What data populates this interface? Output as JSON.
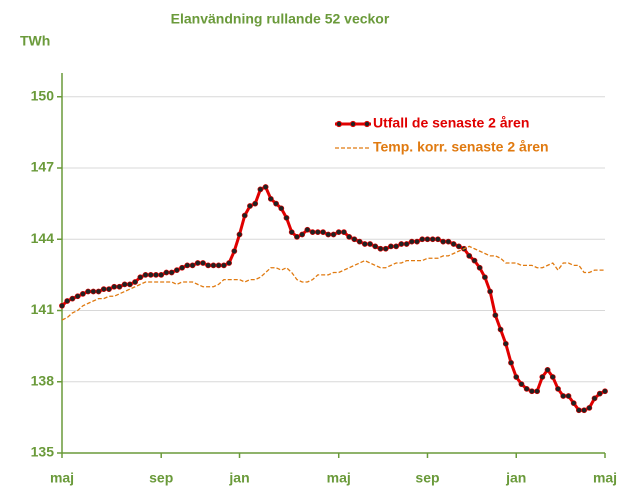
{
  "chart_data": {
    "type": "line",
    "title": "Elanvändning rullande 52 veckor",
    "y_label": "TWh",
    "categories": [
      "maj",
      null,
      null,
      null,
      null,
      null,
      null,
      null,
      null,
      null,
      null,
      null,
      null,
      null,
      null,
      null,
      null,
      null,
      null,
      "sep",
      null,
      null,
      null,
      null,
      null,
      null,
      null,
      null,
      null,
      null,
      null,
      null,
      null,
      null,
      "jan",
      null,
      null,
      null,
      null,
      null,
      null,
      null,
      null,
      null,
      null,
      null,
      null,
      null,
      null,
      null,
      null,
      null,
      null,
      "maj",
      null,
      null,
      null,
      null,
      null,
      null,
      null,
      null,
      null,
      null,
      null,
      null,
      null,
      null,
      null,
      null,
      "sep",
      null,
      null,
      null,
      null,
      null,
      null,
      null,
      null,
      null,
      null,
      null,
      null,
      null,
      null,
      null,
      null,
      "jan",
      null,
      null,
      null,
      null,
      null,
      null,
      null,
      null,
      null,
      null,
      null,
      null,
      null,
      null,
      null,
      null,
      "maj"
    ],
    "series": [
      {
        "name": "Utfall de senaste 2 åren",
        "color": "#e00000",
        "marker_color": "#222222",
        "style": "solid-markers",
        "values": [
          141.2,
          141.4,
          141.5,
          141.6,
          141.7,
          141.8,
          141.8,
          141.8,
          141.9,
          141.9,
          142.0,
          142.0,
          142.1,
          142.1,
          142.2,
          142.4,
          142.5,
          142.5,
          142.5,
          142.5,
          142.6,
          142.6,
          142.7,
          142.8,
          142.9,
          142.9,
          143.0,
          143.0,
          142.9,
          142.9,
          142.9,
          142.9,
          143.0,
          143.5,
          144.2,
          145.0,
          145.4,
          145.5,
          146.1,
          146.2,
          145.7,
          145.5,
          145.3,
          144.9,
          144.3,
          144.1,
          144.2,
          144.4,
          144.3,
          144.3,
          144.3,
          144.2,
          144.2,
          144.3,
          144.3,
          144.1,
          144.0,
          143.9,
          143.8,
          143.8,
          143.7,
          143.6,
          143.6,
          143.7,
          143.7,
          143.8,
          143.8,
          143.9,
          143.9,
          144.0,
          144.0,
          144.0,
          144.0,
          143.9,
          143.9,
          143.8,
          143.7,
          143.6,
          143.3,
          143.1,
          142.8,
          142.4,
          141.8,
          140.8,
          140.2,
          139.6,
          138.8,
          138.2,
          137.9,
          137.7,
          137.6,
          137.6,
          138.2,
          138.5,
          138.2,
          137.7,
          137.4,
          137.4,
          137.1,
          136.8,
          136.8,
          136.9,
          137.3,
          137.5,
          137.6
        ]
      },
      {
        "name": "Temp. korr. senaste 2 åren",
        "color": "#e07a10",
        "style": "dashed",
        "values": [
          140.6,
          140.7,
          140.9,
          141.0,
          141.2,
          141.3,
          141.4,
          141.5,
          141.5,
          141.6,
          141.6,
          141.7,
          141.8,
          141.9,
          142.0,
          142.1,
          142.2,
          142.2,
          142.2,
          142.2,
          142.2,
          142.2,
          142.1,
          142.2,
          142.2,
          142.2,
          142.1,
          142.0,
          142.0,
          142.0,
          142.1,
          142.3,
          142.3,
          142.3,
          142.3,
          142.2,
          142.3,
          142.3,
          142.4,
          142.6,
          142.8,
          142.8,
          142.7,
          142.8,
          142.6,
          142.3,
          142.2,
          142.2,
          142.3,
          142.5,
          142.5,
          142.5,
          142.6,
          142.6,
          142.7,
          142.8,
          142.9,
          143.0,
          143.1,
          143.0,
          142.9,
          142.8,
          142.8,
          142.9,
          143.0,
          143.0,
          143.1,
          143.1,
          143.1,
          143.1,
          143.2,
          143.2,
          143.2,
          143.3,
          143.3,
          143.4,
          143.5,
          143.6,
          143.7,
          143.6,
          143.5,
          143.4,
          143.3,
          143.3,
          143.2,
          143.0,
          143.0,
          143.0,
          142.9,
          142.9,
          142.9,
          142.8,
          142.8,
          142.9,
          143.0,
          142.7,
          143.0,
          143.0,
          142.9,
          142.9,
          142.6,
          142.6,
          142.7,
          142.7,
          142.7
        ]
      }
    ],
    "ylim": [
      135,
      151
    ],
    "yticks": [
      135,
      138,
      141,
      144,
      147,
      150
    ],
    "grid": true,
    "legend": "upper right",
    "text_color": "#6a9a3a"
  }
}
